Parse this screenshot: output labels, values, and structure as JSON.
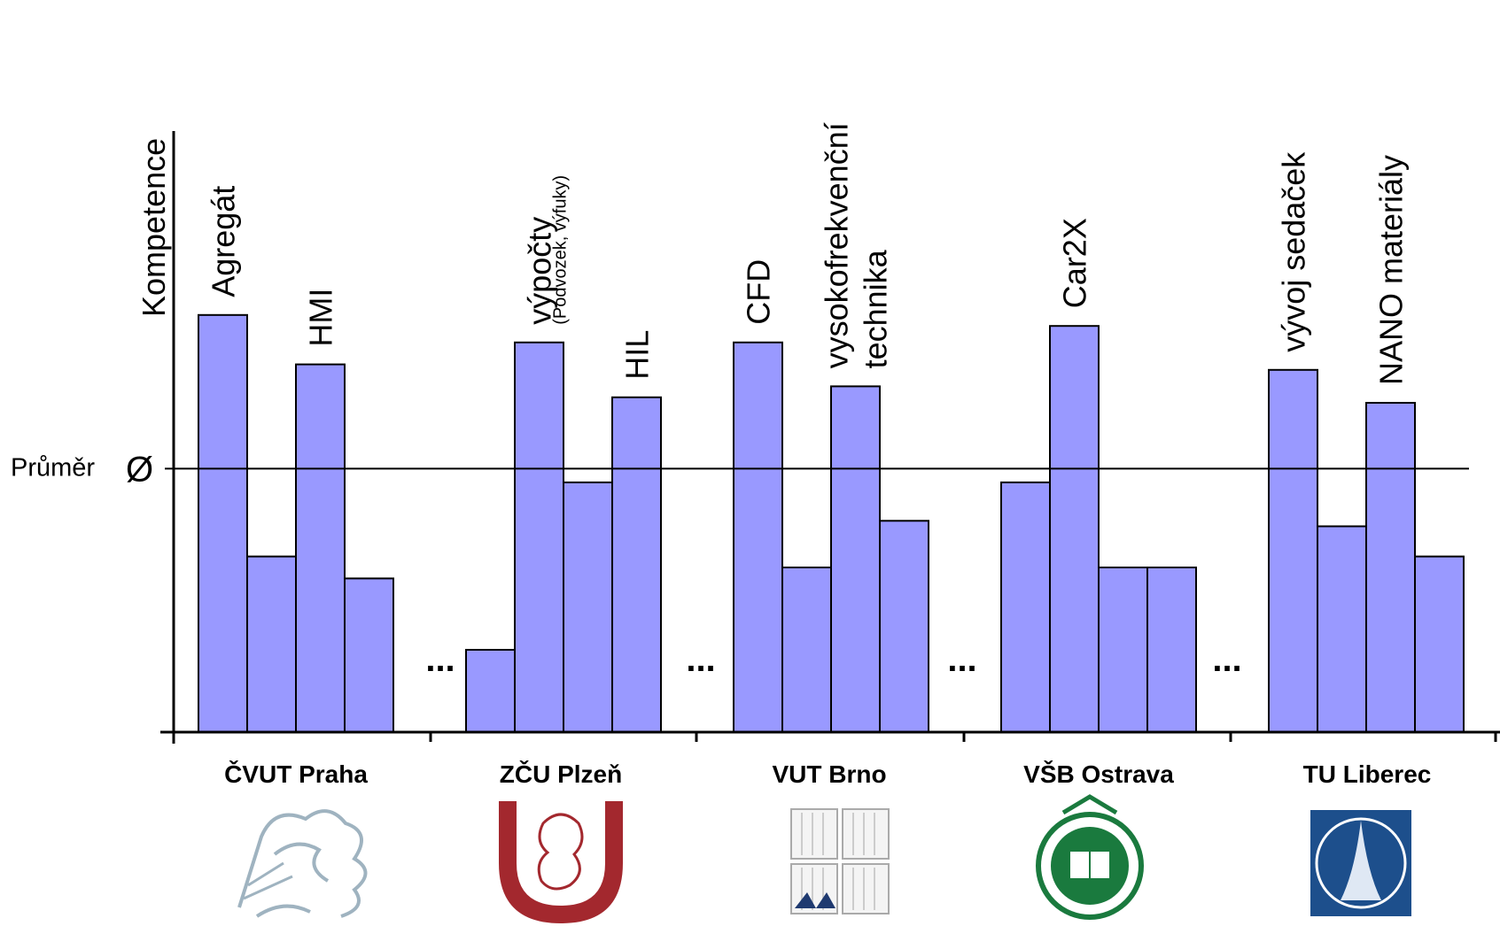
{
  "chart_data": {
    "type": "bar",
    "y_axis_label": "Kompetence",
    "average_label": "Průměr",
    "average_symbol": "Ø",
    "y_range": [
      0,
      100
    ],
    "average_value": 48,
    "gap_marker": "...",
    "groups": [
      {
        "name": "ČVUT Praha",
        "logo": "ctu-lion-logo-icon",
        "values": [
          76,
          32,
          67,
          28
        ],
        "labels": [
          {
            "bar": 0,
            "text": "Agregát"
          },
          {
            "bar": 2,
            "text": "HMI"
          }
        ]
      },
      {
        "name": "ZČU Plzeň",
        "logo": "zcu-lion-shield-logo-icon",
        "values": [
          15,
          71,
          45.5,
          61
        ],
        "labels": [
          {
            "bar": 1,
            "text": "výpočty",
            "subtext": "(Podvozek, výfuky)"
          },
          {
            "bar": 3,
            "text": "HIL"
          }
        ]
      },
      {
        "name": "VUT Brno",
        "logo": "vut-square-logo-icon",
        "values": [
          71,
          30,
          63,
          38.5
        ],
        "labels": [
          {
            "bar": 0,
            "text": "CFD"
          },
          {
            "bar": 2,
            "text": "vysokofrekvenční",
            "text2": "technika"
          }
        ]
      },
      {
        "name": "VŠB Ostrava",
        "logo": "vsb-round-seal-logo-icon",
        "values": [
          45.5,
          74,
          30,
          30
        ],
        "labels": [
          {
            "bar": 1,
            "text": "Car2X"
          }
        ]
      },
      {
        "name": "TU Liberec",
        "logo": "tul-rocket-logo-icon",
        "values": [
          66,
          37.5,
          60,
          32
        ],
        "labels": [
          {
            "bar": 0,
            "text": "vývoj sedaček"
          },
          {
            "bar": 2,
            "text": "NANO materiály"
          }
        ]
      }
    ],
    "bar_color": "#9999ff",
    "bar_stroke": "#000000"
  }
}
